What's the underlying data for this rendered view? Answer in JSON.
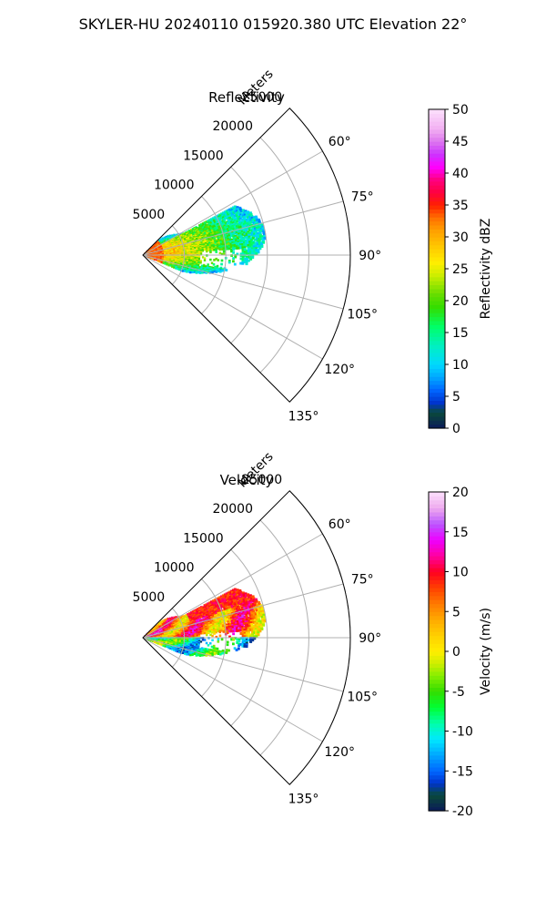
{
  "figure_title": "SKYLER-HU  20240110  015920.380 UTC Elevation 22°",
  "colors": {
    "grid": "#b0b0b0",
    "frame": "#000000",
    "background": "#ffffff"
  },
  "chart_data": [
    {
      "type": "heatmap",
      "projection": "polar-sector",
      "title": "Reflectivity",
      "radial_axis_label": "Meters",
      "radial_ticks": [
        5000,
        10000,
        15000,
        20000,
        25000
      ],
      "radial_range": [
        0,
        25000
      ],
      "azimuth_range_deg": [
        45,
        135
      ],
      "azimuth_ticks": [
        "60°",
        "75°",
        "90°",
        "105°",
        "120°",
        "135°"
      ],
      "grid": true,
      "colorbar": {
        "label": "Reflectivity dBZ",
        "range": [
          0,
          50
        ],
        "ticks": [
          0,
          5,
          10,
          15,
          20,
          25,
          30,
          35,
          40,
          45,
          50
        ],
        "stops": [
          [
            0,
            "#0a1a5a"
          ],
          [
            2.5,
            "#0a4a3a"
          ],
          [
            4,
            "#0033cc"
          ],
          [
            6,
            "#0066ff"
          ],
          [
            8,
            "#00a6ff"
          ],
          [
            10,
            "#00d8ff"
          ],
          [
            13,
            "#00f0c0"
          ],
          [
            16,
            "#00ff66"
          ],
          [
            19,
            "#33dd00"
          ],
          [
            21,
            "#66dd00"
          ],
          [
            24,
            "#ccee00"
          ],
          [
            26,
            "#ffee00"
          ],
          [
            28,
            "#ffd000"
          ],
          [
            31,
            "#ffa000"
          ],
          [
            33,
            "#ff7000"
          ],
          [
            35,
            "#ff2000"
          ],
          [
            37,
            "#ff0040"
          ],
          [
            39,
            "#ff0080"
          ],
          [
            41,
            "#ff00ff"
          ],
          [
            43,
            "#cc33ff"
          ],
          [
            45,
            "#dd77ee"
          ],
          [
            47,
            "#f2b0f2"
          ],
          [
            50,
            "#fce0fc"
          ]
        ]
      }
    },
    {
      "type": "heatmap",
      "projection": "polar-sector",
      "title": "Velocity",
      "radial_axis_label": "Meters",
      "radial_ticks": [
        5000,
        10000,
        15000,
        20000,
        25000
      ],
      "radial_range": [
        0,
        25000
      ],
      "azimuth_range_deg": [
        45,
        135
      ],
      "azimuth_ticks": [
        "60°",
        "75°",
        "90°",
        "105°",
        "120°",
        "135°"
      ],
      "grid": true,
      "colorbar": {
        "label": "Velocity (m/s)",
        "range": [
          -20,
          20
        ],
        "ticks": [
          -20,
          -15,
          -10,
          -5,
          0,
          5,
          10,
          15,
          20
        ],
        "stops": [
          [
            -20,
            "#0a1a5a"
          ],
          [
            -18,
            "#0a4a3a"
          ],
          [
            -16.5,
            "#0033cc"
          ],
          [
            -15,
            "#0066ff"
          ],
          [
            -13,
            "#00a6ff"
          ],
          [
            -11,
            "#00e8ff"
          ],
          [
            -9,
            "#00ffaa"
          ],
          [
            -7,
            "#00ff33"
          ],
          [
            -5,
            "#33dd00"
          ],
          [
            -3,
            "#88ee00"
          ],
          [
            -1.5,
            "#ccee00"
          ],
          [
            0,
            "#ffee00"
          ],
          [
            2,
            "#ffd000"
          ],
          [
            4,
            "#ffaa00"
          ],
          [
            6,
            "#ff7a00"
          ],
          [
            8,
            "#ff4000"
          ],
          [
            10,
            "#ff0020"
          ],
          [
            12,
            "#ff00a0"
          ],
          [
            14,
            "#ee00ff"
          ],
          [
            16,
            "#bb55ff"
          ],
          [
            18,
            "#eeaaee"
          ],
          [
            20,
            "#fce0fc"
          ]
        ]
      }
    }
  ]
}
